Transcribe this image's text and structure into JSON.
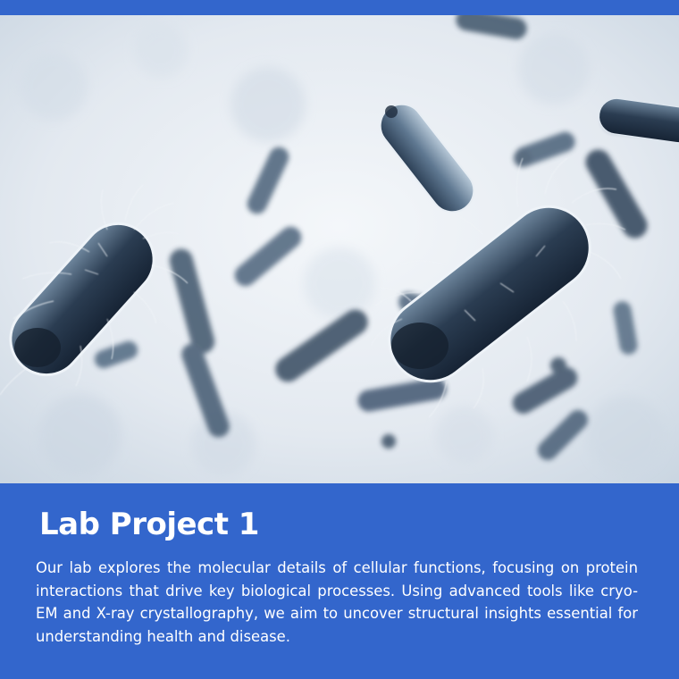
{
  "colors": {
    "brand_blue": "#3366cc",
    "text": "#ffffff",
    "image_background": "#e9eef4",
    "bacteria_dark": "#1f2e40",
    "bacteria_light": "#a9bccd"
  },
  "hero_image": {
    "icon": "bacteria-microscopy-photo"
  },
  "project": {
    "title": "Lab Project 1",
    "description": "Our lab explores the molecular details of cellular functions, focusing on protein interactions that drive key biological processes. Using advanced tools like cryo-EM and X-ray crystallography, we aim to uncover structural insights essential for understanding health and disease."
  }
}
